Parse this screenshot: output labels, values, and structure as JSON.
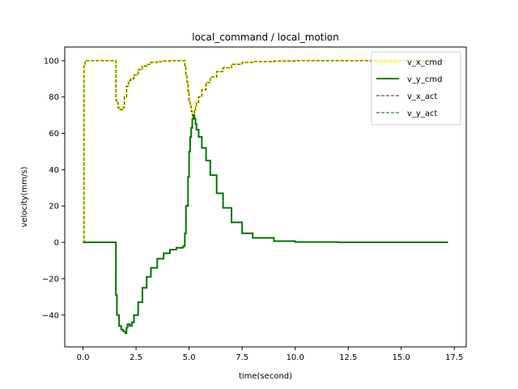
{
  "chart_data": {
    "type": "line",
    "title": "local_command / local_motion",
    "xlabel": "time(second)",
    "ylabel": "velocity(mm/s)",
    "xlim": [
      -0.86,
      18.06
    ],
    "ylim": [
      -57.5,
      107.5
    ],
    "xticks": [
      0.0,
      2.5,
      5.0,
      7.5,
      10.0,
      12.5,
      15.0,
      17.5
    ],
    "xtick_labels": [
      "0.0",
      "2.5",
      "5.0",
      "7.5",
      "10.0",
      "12.5",
      "15.0",
      "17.5"
    ],
    "yticks": [
      -40,
      -20,
      0,
      20,
      40,
      60,
      80,
      100
    ],
    "ytick_labels": [
      "−40",
      "−20",
      "0",
      "20",
      "40",
      "60",
      "80",
      "100"
    ],
    "grid": false,
    "legend_position": "top-right",
    "series": [
      {
        "name": "v_x_cmd",
        "color": "#ffff00",
        "style": "dotted-thick",
        "x": [
          0.0,
          0.05,
          0.1,
          1.5,
          1.55,
          1.65,
          1.75,
          1.85,
          1.95,
          2.05,
          2.15,
          2.25,
          2.4,
          2.6,
          2.8,
          3.0,
          3.2,
          3.5,
          3.8,
          4.1,
          4.4,
          4.75,
          4.8,
          4.85,
          4.9,
          4.95,
          5.0,
          5.05,
          5.1,
          5.15,
          5.2,
          5.25,
          5.3,
          5.35,
          5.45,
          5.6,
          5.8,
          6.0,
          6.3,
          6.6,
          7.0,
          7.5,
          8.0,
          9.0,
          10.0,
          12.0,
          14.0,
          17.2
        ],
        "y": [
          0,
          98,
          100,
          100,
          78,
          74,
          73,
          74,
          80,
          86,
          89,
          90,
          92,
          95,
          97,
          98,
          99,
          99.5,
          99.8,
          100,
          100,
          100,
          97,
          92,
          88,
          83,
          78,
          75,
          72,
          70,
          71,
          73,
          75,
          77,
          80,
          84,
          88,
          91,
          94,
          96,
          98,
          99,
          99.5,
          99.8,
          100,
          100,
          100,
          100
        ]
      },
      {
        "name": "v_y_cmd",
        "color": "#008000",
        "style": "solid",
        "x": [
          0.0,
          1.5,
          1.55,
          1.6,
          1.7,
          1.8,
          1.9,
          2.0,
          2.05,
          2.1,
          2.2,
          2.3,
          2.4,
          2.6,
          2.8,
          3.0,
          3.2,
          3.5,
          3.8,
          4.1,
          4.4,
          4.7,
          4.75,
          4.8,
          4.85,
          4.95,
          5.0,
          5.05,
          5.1,
          5.15,
          5.2,
          5.25,
          5.3,
          5.35,
          5.45,
          5.6,
          5.8,
          6.0,
          6.3,
          6.6,
          7.0,
          7.5,
          8.0,
          9.0,
          10.0,
          12.0,
          14.0,
          17.2
        ],
        "y": [
          0,
          0,
          -29,
          -40,
          -46,
          -48,
          -49,
          -50,
          -47,
          -45,
          -46,
          -44,
          -40,
          -33,
          -25,
          -19,
          -14,
          -9,
          -6,
          -4,
          -3,
          -2.5,
          -2,
          5,
          20,
          36,
          50,
          58,
          63,
          68,
          70,
          68,
          65,
          62,
          58,
          52,
          45,
          37,
          27,
          19,
          11,
          5,
          2.5,
          0.7,
          0.2,
          0,
          0,
          0
        ]
      },
      {
        "name": "v_x_act",
        "color": "#333300",
        "style": "dashed",
        "x": [
          0.0,
          0.05,
          0.1,
          1.5,
          1.55,
          1.65,
          1.75,
          1.85,
          1.95,
          2.05,
          2.15,
          2.25,
          2.4,
          2.6,
          2.8,
          3.0,
          3.2,
          3.5,
          3.8,
          4.1,
          4.4,
          4.75,
          4.8,
          4.85,
          4.9,
          4.95,
          5.0,
          5.05,
          5.1,
          5.15,
          5.2,
          5.25,
          5.3,
          5.35,
          5.45,
          5.6,
          5.8,
          6.0,
          6.3,
          6.6,
          7.0,
          7.5,
          8.0,
          9.0,
          10.0,
          12.0,
          14.0,
          17.2
        ],
        "y": [
          0,
          98,
          100,
          100,
          78,
          74,
          73,
          74,
          80,
          86,
          89,
          90,
          92,
          95,
          97,
          98,
          99,
          99.5,
          99.8,
          100,
          100,
          100,
          97,
          92,
          88,
          83,
          78,
          75,
          72,
          70,
          71,
          73,
          75,
          77,
          80,
          84,
          88,
          91,
          94,
          96,
          98,
          99,
          99.5,
          99.8,
          100,
          100,
          100,
          100
        ]
      },
      {
        "name": "v_y_act",
        "color": "#006400",
        "style": "dashed",
        "x": [
          0.0,
          1.5,
          1.55,
          1.6,
          1.7,
          1.8,
          1.9,
          2.0,
          2.05,
          2.1,
          2.2,
          2.3,
          2.4,
          2.6,
          2.8,
          3.0,
          3.2,
          3.5,
          3.8,
          4.1,
          4.4,
          4.7,
          4.75,
          4.8,
          4.85,
          4.95,
          5.0,
          5.05,
          5.1,
          5.15,
          5.2,
          5.25,
          5.3,
          5.35,
          5.45,
          5.6,
          5.8,
          6.0,
          6.3,
          6.6,
          7.0,
          7.5,
          8.0,
          9.0,
          10.0,
          12.0,
          14.0,
          17.2
        ],
        "y": [
          0,
          0,
          -29,
          -40,
          -46,
          -48,
          -49,
          -50,
          -47,
          -45,
          -46,
          -44,
          -40,
          -33,
          -25,
          -19,
          -14,
          -9,
          -6,
          -4,
          -3,
          -2.5,
          -2,
          5,
          20,
          36,
          50,
          58,
          63,
          68,
          70,
          68,
          65,
          62,
          58,
          52,
          45,
          37,
          27,
          19,
          11,
          5,
          2.5,
          0.7,
          0.2,
          0,
          0,
          0
        ]
      }
    ]
  }
}
